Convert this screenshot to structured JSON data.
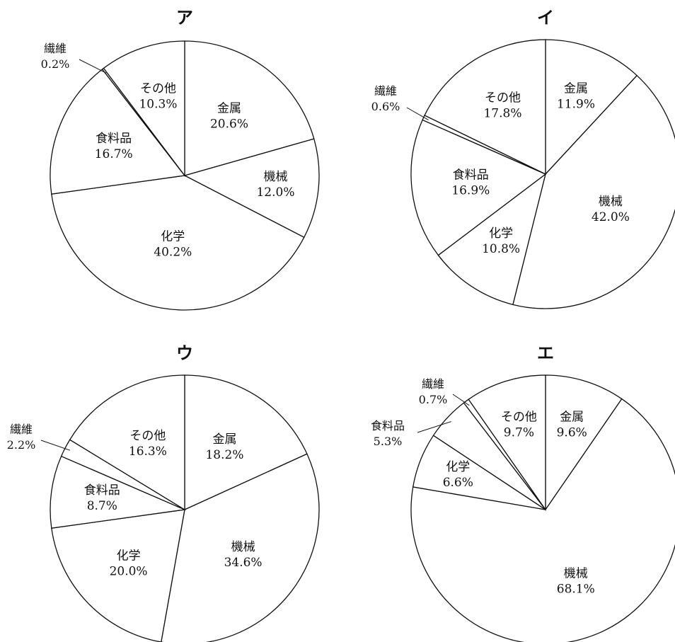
{
  "chart_data": [
    {
      "type": "pie",
      "title": "ア",
      "slices": [
        {
          "label": "金属",
          "value": 20.6,
          "value_text": "20.6%"
        },
        {
          "label": "機械",
          "value": 12.0,
          "value_text": "12.0%"
        },
        {
          "label": "化学",
          "value": 40.2,
          "value_text": "40.2%"
        },
        {
          "label": "食料品",
          "value": 16.7,
          "value_text": "16.7%"
        },
        {
          "label": "繊維",
          "value": 0.2,
          "value_text": "0.2%"
        },
        {
          "label": "その他",
          "value": 10.3,
          "value_text": "10.3%"
        }
      ]
    },
    {
      "type": "pie",
      "title": "イ",
      "slices": [
        {
          "label": "金属",
          "value": 11.9,
          "value_text": "11.9%"
        },
        {
          "label": "機械",
          "value": 42.0,
          "value_text": "42.0%"
        },
        {
          "label": "化学",
          "value": 10.8,
          "value_text": "10.8%"
        },
        {
          "label": "食料品",
          "value": 16.9,
          "value_text": "16.9%"
        },
        {
          "label": "繊維",
          "value": 0.6,
          "value_text": "0.6%"
        },
        {
          "label": "その他",
          "value": 17.8,
          "value_text": "17.8%"
        }
      ]
    },
    {
      "type": "pie",
      "title": "ウ",
      "slices": [
        {
          "label": "金属",
          "value": 18.2,
          "value_text": "18.2%"
        },
        {
          "label": "機械",
          "value": 34.6,
          "value_text": "34.6%"
        },
        {
          "label": "化学",
          "value": 20.0,
          "value_text": "20.0%"
        },
        {
          "label": "食料品",
          "value": 8.7,
          "value_text": "8.7%"
        },
        {
          "label": "繊維",
          "value": 2.2,
          "value_text": "2.2%"
        },
        {
          "label": "その他",
          "value": 16.3,
          "value_text": "16.3%"
        }
      ]
    },
    {
      "type": "pie",
      "title": "エ",
      "slices": [
        {
          "label": "金属",
          "value": 9.6,
          "value_text": "9.6%"
        },
        {
          "label": "機械",
          "value": 68.1,
          "value_text": "68.1%"
        },
        {
          "label": "化学",
          "value": 6.6,
          "value_text": "6.6%"
        },
        {
          "label": "食料品",
          "value": 5.3,
          "value_text": "5.3%"
        },
        {
          "label": "繊維",
          "value": 0.7,
          "value_text": "0.7%"
        },
        {
          "label": "その他",
          "value": 9.7,
          "value_text": "9.7%"
        }
      ]
    }
  ]
}
